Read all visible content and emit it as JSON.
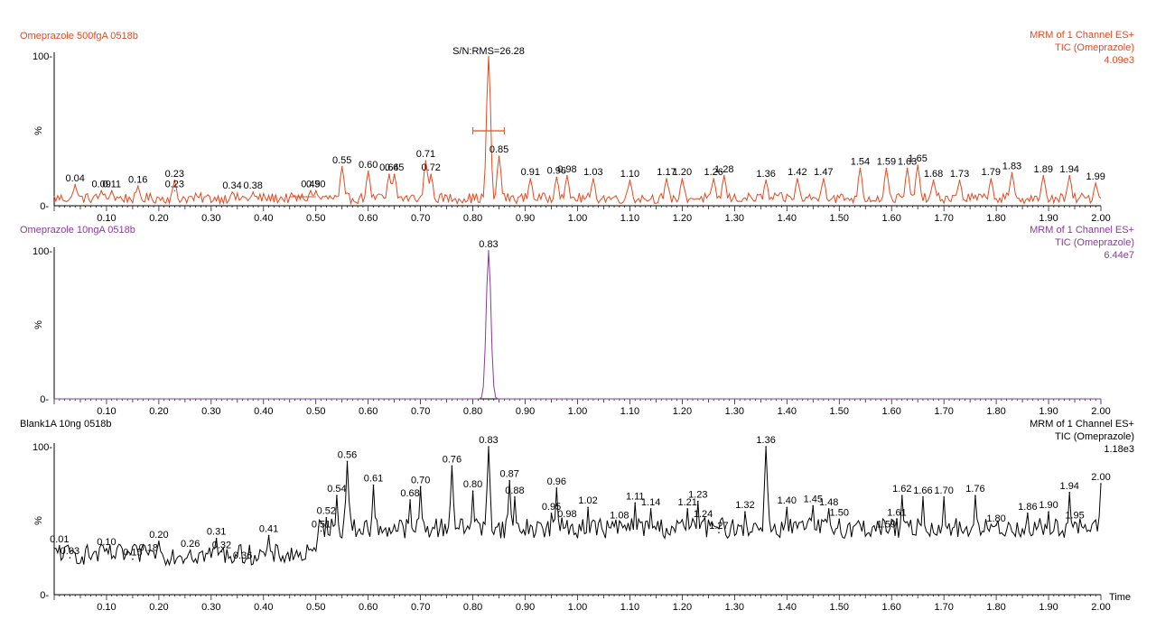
{
  "axis": {
    "xticks": [
      "0.10",
      "0.20",
      "0.30",
      "0.40",
      "0.50",
      "0.60",
      "0.70",
      "0.80",
      "0.90",
      "1.00",
      "1.10",
      "1.20",
      "1.30",
      "1.40",
      "1.50",
      "1.60",
      "1.70",
      "1.80",
      "1.90",
      "2.00"
    ],
    "xlabel": "Time",
    "yticks": [
      "0-",
      "100-"
    ],
    "ylabel": "%"
  },
  "chart_data": [
    {
      "type": "line",
      "title": "Omeprazole 500fgA 0518b",
      "header_right": [
        "MRM of 1 Channel ES+",
        "TIC (Omeprazole)",
        "4.09e3"
      ],
      "annotation": "S/N:RMS=26.28",
      "color": "#e8481e",
      "xlim": [
        0,
        2.0
      ],
      "ylim": [
        0,
        100
      ],
      "peaks": [
        {
          "x": 0.04,
          "y": 14,
          "label": "0.04"
        },
        {
          "x": 0.09,
          "y": 10,
          "label": "0.09"
        },
        {
          "x": 0.11,
          "y": 10,
          "label": "0.11"
        },
        {
          "x": 0.16,
          "y": 13,
          "label": "0.16"
        },
        {
          "x": 0.23,
          "y": 17,
          "label": "0.23"
        },
        {
          "x": 0.23,
          "y": 10,
          "label": "0.23"
        },
        {
          "x": 0.34,
          "y": 9,
          "label": "0.34"
        },
        {
          "x": 0.38,
          "y": 9,
          "label": "0.38"
        },
        {
          "x": 0.49,
          "y": 10,
          "label": "0.49"
        },
        {
          "x": 0.5,
          "y": 10,
          "label": "0.50"
        },
        {
          "x": 0.55,
          "y": 26,
          "label": "0.55"
        },
        {
          "x": 0.6,
          "y": 23,
          "label": "0.60"
        },
        {
          "x": 0.64,
          "y": 21,
          "label": "0.64"
        },
        {
          "x": 0.65,
          "y": 21,
          "label": "0.65"
        },
        {
          "x": 0.71,
          "y": 30,
          "label": "0.71"
        },
        {
          "x": 0.72,
          "y": 21,
          "label": "0.72"
        },
        {
          "x": 0.83,
          "y": 100,
          "label": ""
        },
        {
          "x": 0.85,
          "y": 33,
          "label": "0.85"
        },
        {
          "x": 0.91,
          "y": 18,
          "label": "0.91"
        },
        {
          "x": 0.96,
          "y": 19,
          "label": "0.96"
        },
        {
          "x": 0.98,
          "y": 20,
          "label": "0.98"
        },
        {
          "x": 1.03,
          "y": 18,
          "label": "1.03"
        },
        {
          "x": 1.1,
          "y": 17,
          "label": "1.10"
        },
        {
          "x": 1.17,
          "y": 18,
          "label": "1.17"
        },
        {
          "x": 1.2,
          "y": 18,
          "label": "1.20"
        },
        {
          "x": 1.26,
          "y": 18,
          "label": "1.26"
        },
        {
          "x": 1.28,
          "y": 20,
          "label": "1.28"
        },
        {
          "x": 1.36,
          "y": 17,
          "label": "1.36"
        },
        {
          "x": 1.42,
          "y": 18,
          "label": "1.42"
        },
        {
          "x": 1.47,
          "y": 18,
          "label": "1.47"
        },
        {
          "x": 1.54,
          "y": 25,
          "label": "1.54"
        },
        {
          "x": 1.59,
          "y": 25,
          "label": "1.59"
        },
        {
          "x": 1.63,
          "y": 25,
          "label": "1.63"
        },
        {
          "x": 1.65,
          "y": 27,
          "label": "1.65"
        },
        {
          "x": 1.68,
          "y": 17,
          "label": "1.68"
        },
        {
          "x": 1.73,
          "y": 17,
          "label": "1.73"
        },
        {
          "x": 1.79,
          "y": 18,
          "label": "1.79"
        },
        {
          "x": 1.83,
          "y": 22,
          "label": "1.83"
        },
        {
          "x": 1.89,
          "y": 20,
          "label": "1.89"
        },
        {
          "x": 1.94,
          "y": 20,
          "label": "1.94"
        },
        {
          "x": 1.99,
          "y": 15,
          "label": "1.99"
        }
      ],
      "baseline": 4,
      "noise": 7
    },
    {
      "type": "line",
      "title": "Omeprazole 10ngA 0518b",
      "header_right": [
        "MRM of 1 Channel ES+",
        "TIC (Omeprazole)",
        "6.44e7"
      ],
      "color": "#8a3a9e",
      "xlim": [
        0,
        2.0
      ],
      "ylim": [
        0,
        100
      ],
      "peaks": [
        {
          "x": 0.83,
          "y": 100,
          "label": "0.83"
        }
      ],
      "baseline": 0,
      "noise": 0
    },
    {
      "type": "line",
      "title": "Blank1A 10ng 0518b",
      "header_right": [
        "MRM of 1 Channel ES+",
        "TIC (Omeprazole)",
        "1.18e3"
      ],
      "color": "#000000",
      "xlim": [
        0,
        2.0
      ],
      "ylim": [
        0,
        100
      ],
      "peaks": [
        {
          "x": 0.01,
          "y": 33,
          "label": "0.01"
        },
        {
          "x": 0.03,
          "y": 25,
          "label": "0.03"
        },
        {
          "x": 0.1,
          "y": 31,
          "label": "0.10"
        },
        {
          "x": 0.15,
          "y": 24,
          "label": "0.15"
        },
        {
          "x": 0.18,
          "y": 27,
          "label": "0.18"
        },
        {
          "x": 0.2,
          "y": 36,
          "label": "0.20"
        },
        {
          "x": 0.26,
          "y": 30,
          "label": "0.26"
        },
        {
          "x": 0.31,
          "y": 38,
          "label": "0.31"
        },
        {
          "x": 0.32,
          "y": 29,
          "label": "0.32"
        },
        {
          "x": 0.36,
          "y": 22,
          "label": "0.36"
        },
        {
          "x": 0.41,
          "y": 40,
          "label": "0.41"
        },
        {
          "x": 0.51,
          "y": 43,
          "label": "0.51"
        },
        {
          "x": 0.52,
          "y": 52,
          "label": "0.52"
        },
        {
          "x": 0.54,
          "y": 67,
          "label": "0.54"
        },
        {
          "x": 0.56,
          "y": 90,
          "label": "0.56"
        },
        {
          "x": 0.61,
          "y": 74,
          "label": "0.61"
        },
        {
          "x": 0.68,
          "y": 64,
          "label": "0.68"
        },
        {
          "x": 0.7,
          "y": 73,
          "label": "0.70"
        },
        {
          "x": 0.76,
          "y": 87,
          "label": "0.76"
        },
        {
          "x": 0.8,
          "y": 70,
          "label": "0.80"
        },
        {
          "x": 0.83,
          "y": 100,
          "label": "0.83"
        },
        {
          "x": 0.87,
          "y": 77,
          "label": "0.87"
        },
        {
          "x": 0.88,
          "y": 66,
          "label": "0.88"
        },
        {
          "x": 0.95,
          "y": 55,
          "label": "0.95"
        },
        {
          "x": 0.96,
          "y": 72,
          "label": "0.96"
        },
        {
          "x": 0.98,
          "y": 50,
          "label": "0.98"
        },
        {
          "x": 1.02,
          "y": 59,
          "label": "1.02"
        },
        {
          "x": 1.08,
          "y": 49,
          "label": "1.08"
        },
        {
          "x": 1.11,
          "y": 62,
          "label": "1.11"
        },
        {
          "x": 1.14,
          "y": 58,
          "label": "1.14"
        },
        {
          "x": 1.21,
          "y": 58,
          "label": "1.21"
        },
        {
          "x": 1.23,
          "y": 63,
          "label": "1.23"
        },
        {
          "x": 1.24,
          "y": 50,
          "label": "1.24"
        },
        {
          "x": 1.27,
          "y": 42,
          "label": "1.27"
        },
        {
          "x": 1.32,
          "y": 56,
          "label": "1.32"
        },
        {
          "x": 1.36,
          "y": 100,
          "label": "1.36"
        },
        {
          "x": 1.4,
          "y": 59,
          "label": "1.40"
        },
        {
          "x": 1.45,
          "y": 60,
          "label": "1.45"
        },
        {
          "x": 1.48,
          "y": 58,
          "label": "1.48"
        },
        {
          "x": 1.5,
          "y": 51,
          "label": "1.50"
        },
        {
          "x": 1.59,
          "y": 43,
          "label": "1.59"
        },
        {
          "x": 1.61,
          "y": 51,
          "label": "1.61"
        },
        {
          "x": 1.62,
          "y": 67,
          "label": "1.62"
        },
        {
          "x": 1.66,
          "y": 66,
          "label": "1.66"
        },
        {
          "x": 1.7,
          "y": 66,
          "label": "1.70"
        },
        {
          "x": 1.76,
          "y": 67,
          "label": "1.76"
        },
        {
          "x": 1.8,
          "y": 47,
          "label": "1.80"
        },
        {
          "x": 1.86,
          "y": 55,
          "label": "1.86"
        },
        {
          "x": 1.9,
          "y": 56,
          "label": "1.90"
        },
        {
          "x": 1.94,
          "y": 69,
          "label": "1.94"
        },
        {
          "x": 1.95,
          "y": 49,
          "label": "1.95"
        },
        {
          "x": 2.0,
          "y": 75,
          "label": "2.00"
        }
      ],
      "baseline": 25,
      "noise": 14
    }
  ]
}
